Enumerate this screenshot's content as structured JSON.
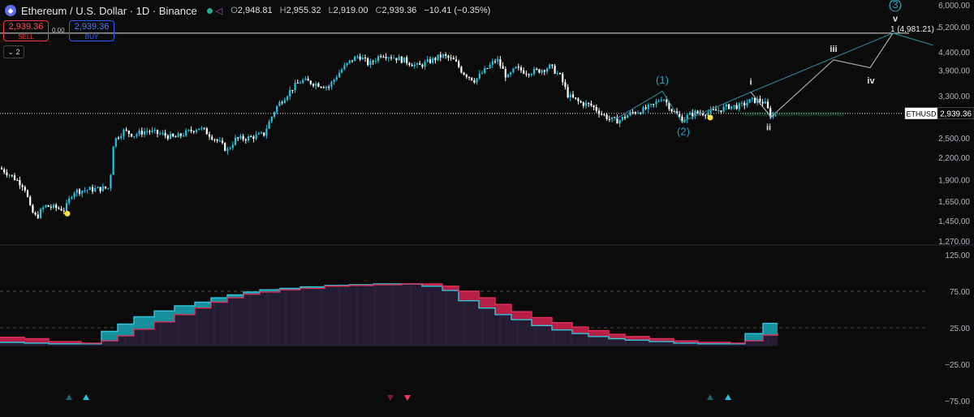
{
  "header": {
    "title": "Ethereum / U.S. Dollar · 1D · Binance",
    "ohlc": [
      {
        "k": "O",
        "v": "2,948.81"
      },
      {
        "k": "H",
        "v": "2,955.32"
      },
      {
        "k": "L",
        "v": "2,919.00"
      },
      {
        "k": "C",
        "v": "2,939.36"
      }
    ],
    "change": "−10.41 (−0.35%)"
  },
  "trade": {
    "sell_price": "2,939.36",
    "sell_label": "SELL",
    "spread": "0.00",
    "buy_price": "2,939.36",
    "buy_label": "BUY",
    "collapse_label": "2"
  },
  "colors": {
    "background": "#0b0b0b",
    "candle_up": "#22c4e0",
    "candle_down": "#ffffff",
    "wave_line": "#2b7e8e",
    "wave_label": "#22a3c0",
    "subwave_label": "#e8e8e8",
    "osc_teal": "#17909e",
    "osc_red": "#b71f46",
    "osc_fill": "#241c33"
  },
  "chart_data": [
    {
      "type": "candlestick",
      "symbol": "ETHUSD",
      "last_price": 2939.36,
      "last_price_label": "ETHUSD",
      "last_price_text": "2,939.36",
      "yscale": "log",
      "ylim": [
        1270,
        6000
      ],
      "ytick_labels": [
        "6,000.00",
        "5,200.00",
        "4,400.00",
        "3,900.00",
        "3,300.00",
        "2,500.00",
        "2,200.00",
        "1,900.00",
        "1,650.00",
        "1,450.00",
        "1,270.00"
      ],
      "close_path": [
        [
          0,
          2050
        ],
        [
          10,
          1980
        ],
        [
          20,
          1900
        ],
        [
          30,
          1820
        ],
        [
          38,
          1550
        ],
        [
          45,
          1480
        ],
        [
          55,
          1600
        ],
        [
          68,
          1580
        ],
        [
          80,
          1560
        ],
        [
          90,
          1760
        ],
        [
          110,
          1780
        ],
        [
          135,
          1800
        ],
        [
          140,
          2450
        ],
        [
          152,
          2620
        ],
        [
          165,
          2550
        ],
        [
          180,
          2620
        ],
        [
          200,
          2560
        ],
        [
          215,
          2500
        ],
        [
          235,
          2620
        ],
        [
          245,
          2680
        ],
        [
          258,
          2560
        ],
        [
          270,
          2430
        ],
        [
          280,
          2300
        ],
        [
          290,
          2480
        ],
        [
          305,
          2500
        ],
        [
          325,
          2560
        ],
        [
          340,
          3050
        ],
        [
          352,
          3300
        ],
        [
          362,
          3500
        ],
        [
          372,
          3650
        ],
        [
          392,
          3560
        ],
        [
          405,
          3500
        ],
        [
          420,
          3900
        ],
        [
          432,
          4150
        ],
        [
          442,
          4300
        ],
        [
          455,
          4050
        ],
        [
          470,
          4350
        ],
        [
          485,
          4250
        ],
        [
          500,
          4150
        ],
        [
          515,
          4000
        ],
        [
          530,
          4150
        ],
        [
          545,
          4300
        ],
        [
          560,
          4150
        ],
        [
          570,
          3850
        ],
        [
          585,
          3650
        ],
        [
          600,
          3950
        ],
        [
          612,
          4200
        ],
        [
          625,
          3700
        ],
        [
          635,
          3950
        ],
        [
          650,
          3850
        ],
        [
          665,
          3900
        ],
        [
          678,
          4000
        ],
        [
          690,
          3750
        ],
        [
          700,
          3300
        ],
        [
          715,
          3150
        ],
        [
          728,
          3100
        ],
        [
          740,
          2950
        ],
        [
          752,
          2820
        ],
        [
          762,
          2800
        ],
        [
          778,
          2950
        ],
        [
          792,
          3000
        ],
        [
          805,
          3100
        ],
        [
          816,
          3280
        ],
        [
          828,
          3000
        ],
        [
          840,
          2820
        ],
        [
          855,
          2950
        ],
        [
          870,
          2950
        ],
        [
          885,
          3000
        ],
        [
          898,
          3080
        ],
        [
          912,
          3080
        ],
        [
          925,
          3200
        ],
        [
          935,
          3200
        ],
        [
          942,
          3150
        ],
        [
          950,
          2880
        ],
        [
          957,
          2939
        ]
      ],
      "markers_yellow": [
        [
          83,
          1520
        ],
        [
          875,
          2860
        ]
      ],
      "target_level": {
        "value": 4981.21,
        "label": "1 (4,981.21) -"
      },
      "support_zone": [
        2890,
        2960
      ],
      "wave_path_teal": [
        [
          755,
          2800
        ],
        [
          816,
          3400
        ],
        [
          840,
          2780
        ],
        [
          925,
          3380
        ],
        [
          1100,
          4981
        ],
        [
          1150,
          4600
        ]
      ],
      "wave_path_grey": [
        [
          925,
          3380
        ],
        [
          950,
          2870
        ],
        [
          1027,
          4180
        ],
        [
          1072,
          3970
        ],
        [
          1100,
          4981
        ]
      ],
      "wave_labels": [
        {
          "text": "(1)",
          "x": 816,
          "y": 3650
        },
        {
          "text": "(2)",
          "x": 842,
          "y": 2600
        },
        {
          "text": "(3)",
          "x": 1103,
          "y": 6000
        },
        {
          "text": "i",
          "x": 925,
          "y": 3620
        },
        {
          "text": "ii",
          "x": 947,
          "y": 2690
        },
        {
          "text": "iii",
          "x": 1027,
          "y": 4500
        },
        {
          "text": "iv",
          "x": 1073,
          "y": 3650
        },
        {
          "text": "v",
          "x": 1103,
          "y": 5500
        }
      ]
    },
    {
      "type": "area",
      "ylim": [
        -75,
        125
      ],
      "ytick_labels": [
        "125.00",
        "75.00",
        "25.00",
        "−25.00",
        "−75.00"
      ],
      "dashed_levels": [
        75,
        25
      ],
      "series": [
        {
          "key": "teal_line",
          "values": [
            [
              0,
              5
            ],
            [
              30,
              4
            ],
            [
              60,
              3
            ],
            [
              100,
              3
            ],
            [
              125,
              20
            ],
            [
              145,
              30
            ],
            [
              165,
              40
            ],
            [
              190,
              48
            ],
            [
              215,
              55
            ],
            [
              240,
              60
            ],
            [
              260,
              66
            ],
            [
              280,
              70
            ],
            [
              300,
              74
            ],
            [
              320,
              77
            ],
            [
              345,
              79
            ],
            [
              370,
              81
            ],
            [
              400,
              83
            ],
            [
              430,
              84
            ],
            [
              460,
              85
            ],
            [
              495,
              85
            ],
            [
              520,
              82
            ],
            [
              545,
              76
            ],
            [
              565,
              62
            ],
            [
              590,
              52
            ],
            [
              610,
              43
            ],
            [
              630,
              36
            ],
            [
              655,
              28
            ],
            [
              680,
              22
            ],
            [
              705,
              17
            ],
            [
              725,
              13
            ],
            [
              750,
              10
            ],
            [
              770,
              8
            ],
            [
              800,
              6
            ],
            [
              830,
              4
            ],
            [
              860,
              3
            ],
            [
              900,
              3
            ],
            [
              918,
              17
            ],
            [
              940,
              31
            ],
            [
              958,
              31
            ]
          ]
        },
        {
          "key": "red_line",
          "values": [
            [
              0,
              12
            ],
            [
              30,
              10
            ],
            [
              60,
              6
            ],
            [
              100,
              4
            ],
            [
              125,
              7
            ],
            [
              145,
              14
            ],
            [
              165,
              23
            ],
            [
              190,
              33
            ],
            [
              215,
              43
            ],
            [
              240,
              52
            ],
            [
              260,
              60
            ],
            [
              280,
              66
            ],
            [
              300,
              71
            ],
            [
              320,
              74
            ],
            [
              345,
              77
            ],
            [
              370,
              79
            ],
            [
              400,
              82
            ],
            [
              430,
              83
            ],
            [
              460,
              84
            ],
            [
              495,
              85
            ],
            [
              520,
              85
            ],
            [
              545,
              82
            ],
            [
              565,
              75
            ],
            [
              590,
              66
            ],
            [
              610,
              57
            ],
            [
              630,
              47
            ],
            [
              655,
              39
            ],
            [
              680,
              32
            ],
            [
              705,
              26
            ],
            [
              725,
              21
            ],
            [
              750,
              16
            ],
            [
              770,
              13
            ],
            [
              800,
              10
            ],
            [
              830,
              7
            ],
            [
              860,
              5
            ],
            [
              900,
              4
            ],
            [
              918,
              7
            ],
            [
              940,
              15
            ],
            [
              958,
              18
            ]
          ]
        }
      ],
      "signal_markers": [
        {
          "x": 85,
          "dir": "up",
          "shade": "dark"
        },
        {
          "x": 106,
          "dir": "up",
          "shade": "bright"
        },
        {
          "x": 481,
          "dir": "down",
          "shade": "dark"
        },
        {
          "x": 502,
          "dir": "down",
          "shade": "bright"
        },
        {
          "x": 875,
          "dir": "up",
          "shade": "dark"
        },
        {
          "x": 897,
          "dir": "up",
          "shade": "bright"
        }
      ]
    }
  ]
}
